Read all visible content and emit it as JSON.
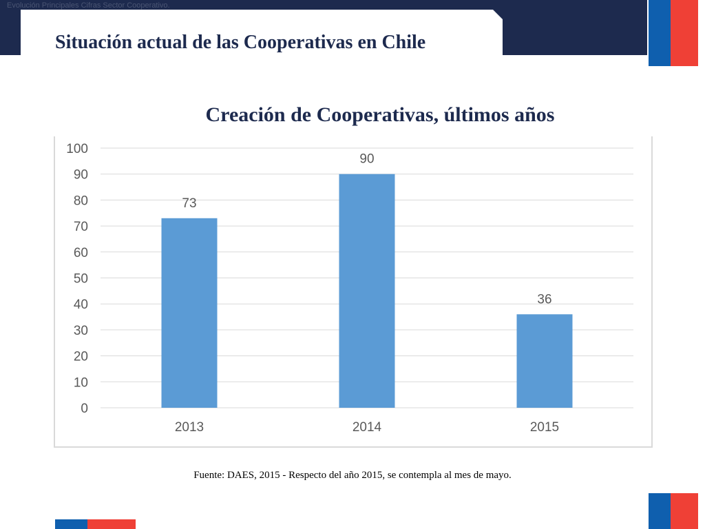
{
  "header": {
    "breadcrumb": "Evolución Principales Cifras Sector Cooperativo.",
    "title": "Situación actual de las Cooperativas en Chile"
  },
  "colors": {
    "navy": "#1d2a4e",
    "flag_blue": "#0f5fae",
    "flag_red": "#ef4036",
    "bar": "#5b9bd5",
    "grid": "#d9d9d9"
  },
  "chart_data": {
    "type": "bar",
    "title": "Creación de Cooperativas, últimos años",
    "categories": [
      "2013",
      "2014",
      "2015"
    ],
    "values": [
      73,
      90,
      36
    ],
    "data_labels": [
      "73",
      "90",
      "36"
    ],
    "ylim": [
      0,
      100
    ],
    "yticks": [
      0,
      10,
      20,
      30,
      40,
      50,
      60,
      70,
      80,
      90,
      100
    ],
    "grid": true,
    "legend": "none",
    "xlabel": "",
    "ylabel": ""
  },
  "footer": {
    "source": "Fuente: DAES, 2015 - Respecto del  año 2015, se contempla al mes de mayo."
  }
}
